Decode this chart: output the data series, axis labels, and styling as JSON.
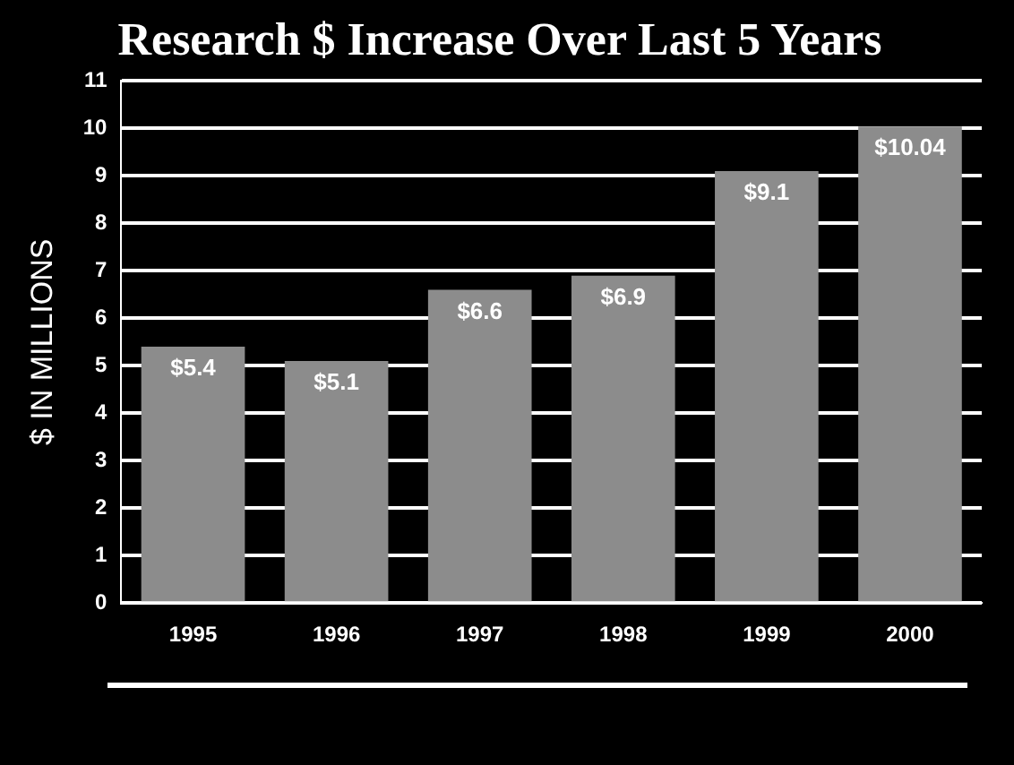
{
  "chart_data": {
    "type": "bar",
    "title": "Research $ Increase Over Last 5 Years",
    "ylabel": "$ IN MILLIONS",
    "categories": [
      "1995",
      "1996",
      "1997",
      "1998",
      "1999",
      "2000"
    ],
    "values": [
      5.4,
      5.1,
      6.6,
      6.9,
      9.1,
      10.04
    ],
    "value_labels": [
      "$5.4",
      "$5.1",
      "$6.6",
      "$6.9",
      "$9.1",
      "$10.04"
    ],
    "color": "#8c8c8c",
    "ylim": [
      0,
      11
    ],
    "yticks": [
      0,
      1,
      2,
      3,
      4,
      5,
      6,
      7,
      8,
      9,
      10,
      11
    ],
    "grid": "y",
    "legend": false
  }
}
